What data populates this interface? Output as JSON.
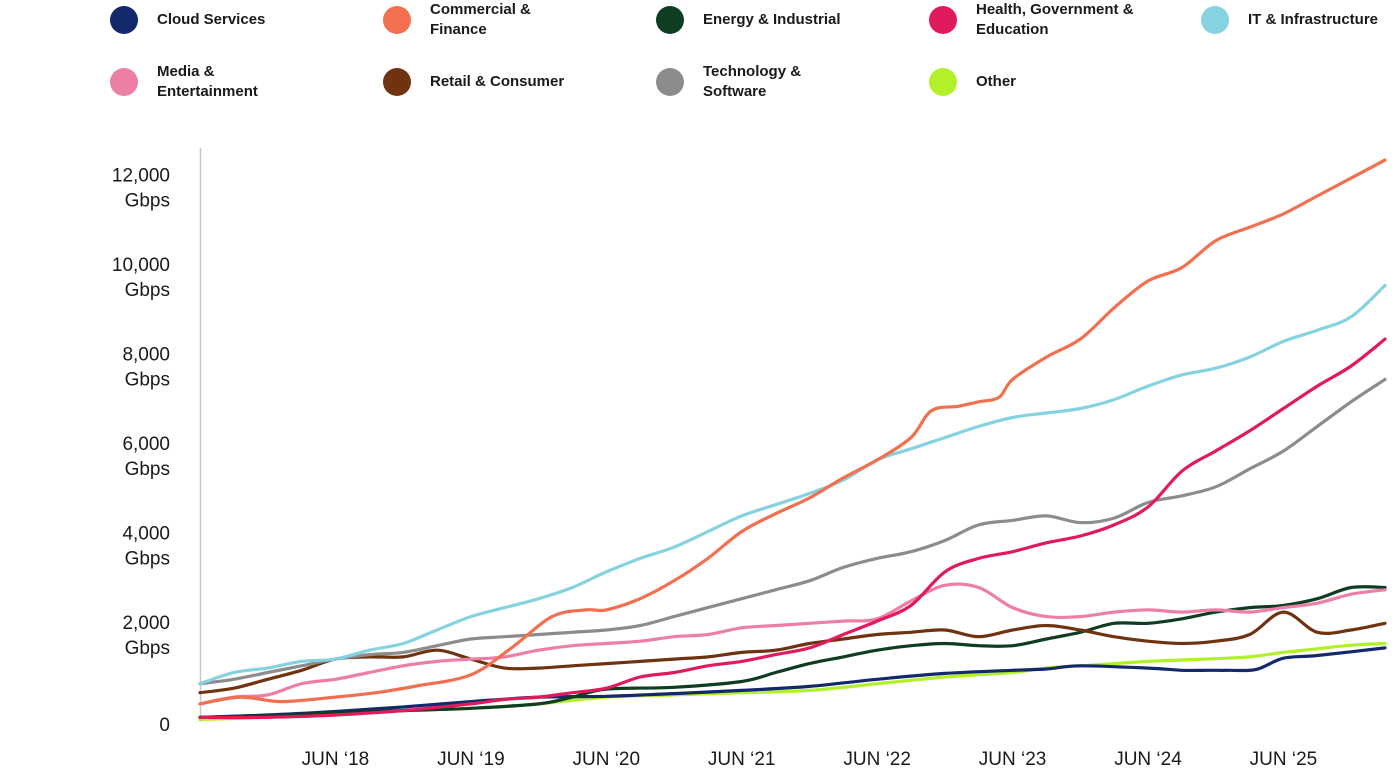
{
  "chart_data": {
    "type": "line",
    "ylabel_unit": "Gbps",
    "ylim": [
      0,
      12000
    ],
    "xlim": [
      2017.0,
      2025.75
    ],
    "y_ticks": [
      {
        "value": 0,
        "lines": [
          "0"
        ]
      },
      {
        "value": 2000,
        "lines": [
          "2,000",
          "Gbps"
        ]
      },
      {
        "value": 4000,
        "lines": [
          "4,000",
          "Gbps"
        ]
      },
      {
        "value": 6000,
        "lines": [
          "6,000",
          "Gbps"
        ]
      },
      {
        "value": 8000,
        "lines": [
          "8,000",
          "Gbps"
        ]
      },
      {
        "value": 10000,
        "lines": [
          "10,000",
          "Gbps"
        ]
      },
      {
        "value": 12000,
        "lines": [
          "12,000",
          "Gbps"
        ]
      }
    ],
    "x_ticks": [
      {
        "value": 2018.0,
        "label": "JUN ‘18"
      },
      {
        "value": 2019.0,
        "label": "JUN ‘19"
      },
      {
        "value": 2020.0,
        "label": "JUN ‘20"
      },
      {
        "value": 2021.0,
        "label": "JUN ‘21"
      },
      {
        "value": 2022.0,
        "label": "JUN ‘22"
      },
      {
        "value": 2023.0,
        "label": "JUN ‘23"
      },
      {
        "value": 2024.0,
        "label": "JUN ‘24"
      },
      {
        "value": 2025.0,
        "label": "JUN ‘25"
      }
    ],
    "series": [
      {
        "name": "Cloud Services",
        "color": "#13296b",
        "x": [
          2017.0,
          2017.5,
          2018.0,
          2018.5,
          2019.0,
          2019.5,
          2020.0,
          2020.5,
          2021.0,
          2021.5,
          2022.0,
          2022.5,
          2023.0,
          2023.25,
          2023.5,
          2024.0,
          2024.25,
          2024.45,
          2024.6,
          2024.8,
          2025.0,
          2025.25,
          2025.75
        ],
        "y": [
          150,
          200,
          280,
          380,
          500,
          600,
          620,
          680,
          750,
          840,
          1000,
          1130,
          1200,
          1230,
          1300,
          1250,
          1200,
          1200,
          1200,
          1220,
          1470,
          1530,
          1700
        ]
      },
      {
        "name": "Commercial & Finance",
        "color": "#f26f50",
        "x": [
          2017.0,
          2017.3,
          2017.6,
          2018.0,
          2018.3,
          2018.6,
          2019.0,
          2019.3,
          2019.6,
          2019.85,
          2020.0,
          2020.25,
          2020.5,
          2020.75,
          2021.0,
          2021.25,
          2021.5,
          2021.75,
          2022.0,
          2022.25,
          2022.4,
          2022.6,
          2022.75,
          2022.9,
          2023.0,
          2023.25,
          2023.5,
          2023.75,
          2024.0,
          2024.25,
          2024.5,
          2024.75,
          2025.0,
          2025.25,
          2025.5,
          2025.75
        ],
        "y": [
          450,
          600,
          500,
          600,
          700,
          850,
          1100,
          1700,
          2400,
          2550,
          2550,
          2800,
          3200,
          3700,
          4300,
          4700,
          5050,
          5500,
          5900,
          6400,
          7000,
          7100,
          7200,
          7300,
          7700,
          8200,
          8600,
          9300,
          9900,
          10200,
          10800,
          11100,
          11400,
          11800,
          12200,
          12600
        ]
      },
      {
        "name": "Energy & Industrial",
        "color": "#0e3d22",
        "x": [
          2017.0,
          2017.5,
          2018.0,
          2018.5,
          2019.0,
          2019.5,
          2019.75,
          2020.0,
          2020.5,
          2021.0,
          2021.25,
          2021.5,
          2021.75,
          2022.0,
          2022.25,
          2022.5,
          2022.75,
          2023.0,
          2023.25,
          2023.5,
          2023.75,
          2024.0,
          2024.25,
          2024.5,
          2024.75,
          2025.0,
          2025.25,
          2025.5,
          2025.75
        ],
        "y": [
          150,
          180,
          250,
          300,
          350,
          450,
          600,
          780,
          820,
          950,
          1150,
          1350,
          1500,
          1650,
          1750,
          1800,
          1750,
          1750,
          1900,
          2050,
          2250,
          2250,
          2350,
          2500,
          2600,
          2650,
          2800,
          3050,
          3050
        ]
      },
      {
        "name": "Health, Government & Education",
        "color": "#e11a5c",
        "x": [
          2017.0,
          2017.5,
          2018.0,
          2018.5,
          2019.0,
          2019.25,
          2019.5,
          2019.75,
          2020.0,
          2020.25,
          2020.5,
          2020.75,
          2021.0,
          2021.25,
          2021.5,
          2021.75,
          2022.0,
          2022.25,
          2022.5,
          2022.75,
          2023.0,
          2023.25,
          2023.5,
          2023.75,
          2024.0,
          2024.25,
          2024.5,
          2024.75,
          2025.0,
          2025.25,
          2025.5,
          2025.75
        ],
        "y": [
          150,
          150,
          200,
          300,
          450,
          550,
          600,
          700,
          800,
          1050,
          1150,
          1300,
          1400,
          1550,
          1700,
          2000,
          2300,
          2650,
          3400,
          3700,
          3850,
          4050,
          4200,
          4450,
          4850,
          5650,
          6100,
          6550,
          7050,
          7550,
          8000,
          8600
        ]
      },
      {
        "name": "IT & Infrastructure",
        "color": "#85d2e1",
        "x": [
          2017.0,
          2017.25,
          2017.5,
          2017.75,
          2018.0,
          2018.25,
          2018.5,
          2018.75,
          2019.0,
          2019.25,
          2019.5,
          2019.75,
          2020.0,
          2020.25,
          2020.5,
          2020.75,
          2021.0,
          2021.25,
          2021.5,
          2021.75,
          2022.0,
          2022.25,
          2022.5,
          2022.75,
          2023.0,
          2023.25,
          2023.5,
          2023.75,
          2024.0,
          2024.25,
          2024.5,
          2024.75,
          2025.0,
          2025.25,
          2025.5,
          2025.75
        ],
        "y": [
          900,
          1150,
          1250,
          1400,
          1450,
          1650,
          1800,
          2100,
          2400,
          2600,
          2800,
          3050,
          3400,
          3700,
          3950,
          4300,
          4650,
          4900,
          5150,
          5450,
          5900,
          6150,
          6400,
          6650,
          6850,
          6950,
          7050,
          7250,
          7550,
          7800,
          7950,
          8200,
          8550,
          8800,
          9100,
          9800
        ]
      },
      {
        "name": "Media & Entertainment",
        "color": "#ed7fa6",
        "x": [
          2017.0,
          2017.25,
          2017.5,
          2017.75,
          2018.0,
          2018.25,
          2018.5,
          2018.75,
          2019.0,
          2019.25,
          2019.5,
          2019.75,
          2020.0,
          2020.25,
          2020.5,
          2020.75,
          2021.0,
          2021.25,
          2021.5,
          2021.75,
          2022.0,
          2022.25,
          2022.5,
          2022.75,
          2023.0,
          2023.25,
          2023.5,
          2023.75,
          2024.0,
          2024.25,
          2024.5,
          2024.75,
          2025.0,
          2025.25,
          2025.5,
          2025.75
        ],
        "y": [
          450,
          600,
          650,
          900,
          1000,
          1150,
          1300,
          1400,
          1450,
          1500,
          1650,
          1750,
          1800,
          1850,
          1950,
          2000,
          2150,
          2200,
          2250,
          2300,
          2350,
          2750,
          3100,
          3050,
          2600,
          2400,
          2400,
          2500,
          2550,
          2500,
          2550,
          2500,
          2600,
          2700,
          2900,
          3000
        ]
      },
      {
        "name": "Retail & Consumer",
        "color": "#6f3310",
        "x": [
          2017.0,
          2017.25,
          2017.5,
          2017.75,
          2018.0,
          2018.25,
          2018.5,
          2018.75,
          2019.0,
          2019.25,
          2019.5,
          2019.75,
          2020.0,
          2020.25,
          2020.5,
          2020.75,
          2021.0,
          2021.25,
          2021.5,
          2021.75,
          2022.0,
          2022.25,
          2022.5,
          2022.75,
          2023.0,
          2023.25,
          2023.5,
          2023.75,
          2024.0,
          2024.25,
          2024.5,
          2024.75,
          2025.0,
          2025.25,
          2025.5,
          2025.75
        ],
        "y": [
          700,
          800,
          1000,
          1200,
          1450,
          1500,
          1500,
          1650,
          1450,
          1250,
          1250,
          1300,
          1350,
          1400,
          1450,
          1500,
          1600,
          1650,
          1800,
          1900,
          2000,
          2050,
          2100,
          1950,
          2100,
          2200,
          2100,
          1950,
          1850,
          1800,
          1850,
          2000,
          2500,
          2050,
          2100,
          2250
        ]
      },
      {
        "name": "Technology & Software",
        "color": "#8c8c8c",
        "x": [
          2017.0,
          2017.25,
          2017.5,
          2017.75,
          2018.0,
          2018.25,
          2018.5,
          2018.75,
          2019.0,
          2019.25,
          2019.5,
          2019.75,
          2020.0,
          2020.25,
          2020.5,
          2020.75,
          2021.0,
          2021.25,
          2021.5,
          2021.75,
          2022.0,
          2022.25,
          2022.5,
          2022.75,
          2023.0,
          2023.25,
          2023.5,
          2023.75,
          2024.0,
          2024.25,
          2024.5,
          2024.75,
          2025.0,
          2025.25,
          2025.5,
          2025.75
        ],
        "y": [
          900,
          1000,
          1150,
          1300,
          1450,
          1550,
          1600,
          1750,
          1900,
          1950,
          2000,
          2050,
          2100,
          2200,
          2400,
          2600,
          2800,
          3000,
          3200,
          3500,
          3700,
          3850,
          4100,
          4450,
          4550,
          4650,
          4500,
          4600,
          4950,
          5100,
          5300,
          5700,
          6100,
          6650,
          7200,
          7700
        ]
      },
      {
        "name": "Other",
        "color": "#b2f02a",
        "x": [
          2017.0,
          2017.5,
          2018.0,
          2018.5,
          2019.0,
          2019.5,
          2020.0,
          2020.5,
          2021.0,
          2021.5,
          2022.0,
          2022.5,
          2023.0,
          2023.25,
          2023.5,
          2023.75,
          2024.0,
          2024.25,
          2024.5,
          2024.75,
          2025.0,
          2025.25,
          2025.5,
          2025.75
        ],
        "y": [
          100,
          150,
          200,
          300,
          350,
          450,
          600,
          650,
          700,
          750,
          900,
          1050,
          1150,
          1250,
          1300,
          1350,
          1400,
          1430,
          1460,
          1500,
          1600,
          1680,
          1760,
          1800
        ]
      }
    ]
  }
}
